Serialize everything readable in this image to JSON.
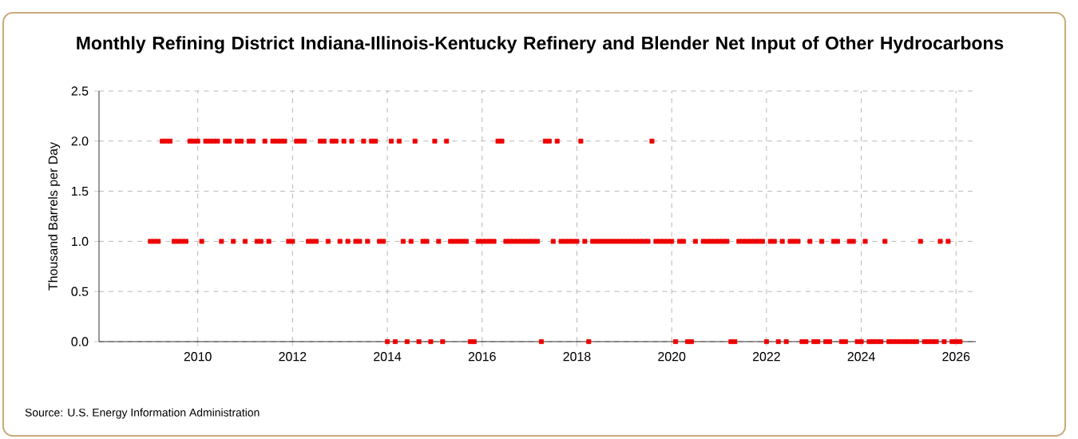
{
  "chart_data": {
    "type": "scatter",
    "title": "Monthly Refining District Indiana-Illinois-Kentucky Refinery and Blender Net Input of Other Hydrocarbons",
    "ylabel": "Thousand Barrels per Day",
    "annotations": [
      "Source: U.S. Energy Information Administration"
    ],
    "color": "#ee0000",
    "grid": true,
    "marker": "square",
    "xlim": [
      "2007-12",
      "2026-06"
    ],
    "xticks": [
      "2010",
      "2012",
      "2014",
      "2016",
      "2018",
      "2020",
      "2022",
      "2024",
      "2026"
    ],
    "ylim": [
      0,
      2.5
    ],
    "yticks": [
      {
        "value": 0,
        "label": "0.0"
      },
      {
        "value": 0.5,
        "label": "0.5"
      },
      {
        "value": 1,
        "label": "1.0"
      },
      {
        "value": 1.5,
        "label": "1.5"
      },
      {
        "value": 2,
        "label": "2.0"
      },
      {
        "value": 2.5,
        "label": "2.5"
      }
    ],
    "x": [
      "2009-01",
      "2009-02",
      "2009-03",
      "2009-04",
      "2009-05",
      "2009-06",
      "2009-07",
      "2009-08",
      "2009-09",
      "2009-10",
      "2009-11",
      "2009-12",
      "2010-01",
      "2010-02",
      "2010-03",
      "2010-04",
      "2010-05",
      "2010-06",
      "2010-07",
      "2010-08",
      "2010-09",
      "2010-10",
      "2010-11",
      "2010-12",
      "2011-01",
      "2011-02",
      "2011-03",
      "2011-04",
      "2011-05",
      "2011-06",
      "2011-07",
      "2011-08",
      "2011-09",
      "2011-10",
      "2011-11",
      "2011-12",
      "2012-01",
      "2012-02",
      "2012-03",
      "2012-04",
      "2012-05",
      "2012-06",
      "2012-07",
      "2012-08",
      "2012-09",
      "2012-10",
      "2012-11",
      "2012-12",
      "2013-01",
      "2013-02",
      "2013-03",
      "2013-04",
      "2013-05",
      "2013-06",
      "2013-07",
      "2013-08",
      "2013-09",
      "2013-10",
      "2013-11",
      "2013-12",
      "2014-01",
      "2014-02",
      "2014-03",
      "2014-04",
      "2014-05",
      "2014-06",
      "2014-07",
      "2014-08",
      "2014-09",
      "2014-10",
      "2014-11",
      "2014-12",
      "2015-01",
      "2015-02",
      "2015-03",
      "2015-04",
      "2015-05",
      "2015-06",
      "2015-07",
      "2015-08",
      "2015-09",
      "2015-10",
      "2015-11",
      "2015-12",
      "2016-01",
      "2016-02",
      "2016-03",
      "2016-04",
      "2016-05",
      "2016-06",
      "2016-07",
      "2016-08",
      "2016-09",
      "2016-10",
      "2016-11",
      "2016-12",
      "2017-01",
      "2017-02",
      "2017-03",
      "2017-04",
      "2017-05",
      "2017-06",
      "2017-07",
      "2017-08",
      "2017-09",
      "2017-10",
      "2017-11",
      "2017-12",
      "2018-01",
      "2018-02",
      "2018-03",
      "2018-04",
      "2018-05",
      "2018-06",
      "2018-07",
      "2018-08",
      "2018-09",
      "2018-10",
      "2018-11",
      "2018-12",
      "2019-01",
      "2019-02",
      "2019-03",
      "2019-04",
      "2019-05",
      "2019-06",
      "2019-07",
      "2019-08",
      "2019-09",
      "2019-10",
      "2019-11",
      "2019-12",
      "2020-01",
      "2020-02",
      "2020-03",
      "2020-04",
      "2020-05",
      "2020-06",
      "2020-07",
      "2020-08",
      "2020-09",
      "2020-10",
      "2020-11",
      "2020-12",
      "2021-01",
      "2021-02",
      "2021-03",
      "2021-04",
      "2021-05",
      "2021-06",
      "2021-07",
      "2021-08",
      "2021-09",
      "2021-10",
      "2021-11",
      "2021-12",
      "2022-01",
      "2022-02",
      "2022-03",
      "2022-04",
      "2022-05",
      "2022-06",
      "2022-07",
      "2022-08",
      "2022-09",
      "2022-10",
      "2022-11",
      "2022-12",
      "2023-01",
      "2023-02",
      "2023-03",
      "2023-04",
      "2023-05",
      "2023-06",
      "2023-07",
      "2023-08",
      "2023-09",
      "2023-10",
      "2023-11",
      "2023-12",
      "2024-01",
      "2024-02",
      "2024-03",
      "2024-04",
      "2024-05",
      "2024-06",
      "2024-07",
      "2024-08",
      "2024-09",
      "2024-10",
      "2024-11",
      "2024-12",
      "2025-01",
      "2025-02",
      "2025-03",
      "2025-04",
      "2025-05",
      "2025-06",
      "2025-07",
      "2025-08",
      "2025-09",
      "2025-10",
      "2025-11",
      "2025-12",
      "2026-01",
      "2026-02"
    ],
    "values": [
      1,
      1,
      1,
      2,
      2,
      2,
      1,
      1,
      1,
      1,
      2,
      2,
      2,
      1,
      2,
      2,
      2,
      2,
      1,
      2,
      2,
      1,
      2,
      2,
      1,
      2,
      2,
      1,
      1,
      2,
      1,
      2,
      2,
      2,
      2,
      1,
      1,
      2,
      2,
      2,
      1,
      1,
      1,
      2,
      2,
      1,
      2,
      2,
      1,
      2,
      1,
      2,
      1,
      1,
      2,
      1,
      2,
      2,
      1,
      1,
      0,
      2,
      0,
      2,
      1,
      0,
      1,
      2,
      0,
      1,
      1,
      0,
      2,
      1,
      0,
      2,
      1,
      1,
      1,
      1,
      1,
      0,
      0,
      1,
      1,
      1,
      1,
      1,
      2,
      2,
      1,
      1,
      1,
      1,
      1,
      1,
      1,
      1,
      1,
      0,
      2,
      2,
      1,
      2,
      1,
      1,
      1,
      1,
      1,
      2,
      1,
      0,
      1,
      1,
      1,
      1,
      1,
      1,
      1,
      1,
      1,
      1,
      1,
      1,
      1,
      1,
      1,
      2,
      1,
      1,
      1,
      1,
      1,
      0,
      1,
      1,
      0,
      0,
      1,
      null,
      1,
      1,
      1,
      1,
      1,
      1,
      1,
      0,
      0,
      1,
      1,
      1,
      1,
      1,
      1,
      1,
      0,
      1,
      1,
      0,
      1,
      0,
      1,
      1,
      1,
      0,
      0,
      1,
      0,
      0,
      1,
      0,
      0,
      1,
      1,
      0,
      0,
      1,
      1,
      0,
      0,
      1,
      0,
      0,
      0,
      0,
      1,
      0,
      0,
      0,
      0,
      0,
      0,
      0,
      0,
      1,
      0,
      0,
      0,
      0,
      1,
      0,
      1,
      0,
      0,
      0
    ]
  }
}
